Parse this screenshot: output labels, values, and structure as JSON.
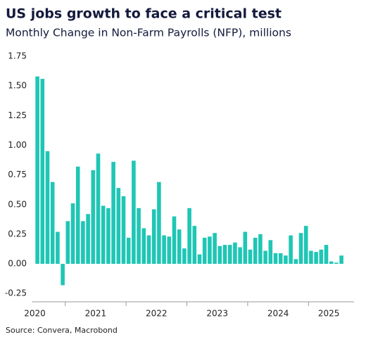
{
  "chart_data": {
    "type": "bar",
    "title": "US jobs growth to face a critical test",
    "subtitle": "Monthly Change in Non-Farm Payrolls (NFP), millions",
    "source": "Source: Convera, Macrobond",
    "color": "#1fc6b5",
    "categories": [
      null,
      null,
      null,
      null,
      null,
      null,
      null,
      null,
      null,
      null,
      null,
      null,
      null,
      null,
      null,
      null,
      null,
      null,
      null,
      null,
      null,
      null,
      null,
      null,
      null,
      null,
      null,
      null,
      null,
      null,
      null,
      null,
      null,
      null,
      null,
      null,
      null,
      null,
      null,
      null,
      null,
      null,
      null,
      null,
      null,
      null,
      null,
      null,
      null,
      null,
      null,
      null,
      null,
      null,
      null,
      null,
      null,
      null,
      null,
      null,
      null
    ],
    "values": [
      1.58,
      1.56,
      0.95,
      0.69,
      0.27,
      -0.18,
      0.36,
      0.51,
      0.82,
      0.36,
      0.42,
      0.79,
      0.93,
      0.49,
      0.47,
      0.86,
      0.64,
      0.57,
      0.22,
      0.87,
      0.47,
      0.3,
      0.24,
      0.46,
      0.69,
      0.24,
      0.23,
      0.4,
      0.29,
      0.13,
      0.47,
      0.32,
      0.08,
      0.22,
      0.23,
      0.26,
      0.15,
      0.16,
      0.16,
      0.18,
      0.14,
      0.27,
      0.12,
      0.22,
      0.25,
      0.11,
      0.2,
      0.09,
      0.09,
      0.07,
      0.24,
      0.04,
      0.26,
      0.32,
      0.11,
      0.1,
      0.12,
      0.16,
      0.02,
      0.01,
      0.07
    ],
    "x_labels": [
      "2020",
      "2021",
      "2022",
      "2023",
      "2024",
      "2025"
    ],
    "ylim": [
      -0.32,
      1.78
    ],
    "yticks": [
      {
        "value": -0.25,
        "label": "-0.25"
      },
      {
        "value": 0,
        "label": "0.00"
      },
      0.25,
      {
        "value": 0.5,
        "label": "0.50"
      },
      0.75,
      {
        "value": 1,
        "label": "1.00"
      },
      1.25,
      {
        "value": 1.5,
        "label": "1.50"
      },
      1.75
    ],
    "grid": false
  }
}
